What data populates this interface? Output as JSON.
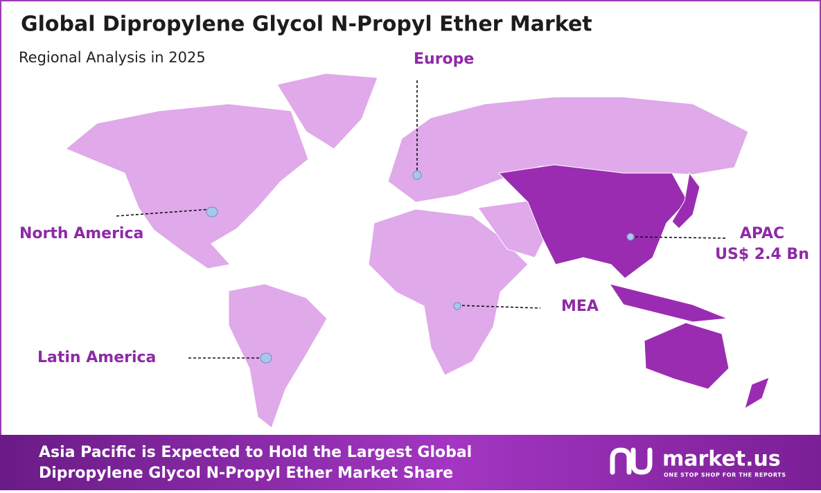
{
  "header": {
    "title": "Global Dipropylene Glycol N-Propyl Ether Market",
    "subtitle": "Regional Analysis in 2025"
  },
  "regions": [
    {
      "label": "North America"
    },
    {
      "label": "Europe"
    },
    {
      "label": "APAC",
      "value": "US$ 2.4 Bn"
    },
    {
      "label": "MEA"
    },
    {
      "label": "Latin America"
    }
  ],
  "footer": {
    "lines": [
      "Asia Pacific is Expected to Hold the Largest Global",
      "Dipropylene Glycol N-Propyl Ether Market Share"
    ],
    "brand": "market.us",
    "tagline": "ONE STOP SHOP FOR THE REPORTS"
  }
}
